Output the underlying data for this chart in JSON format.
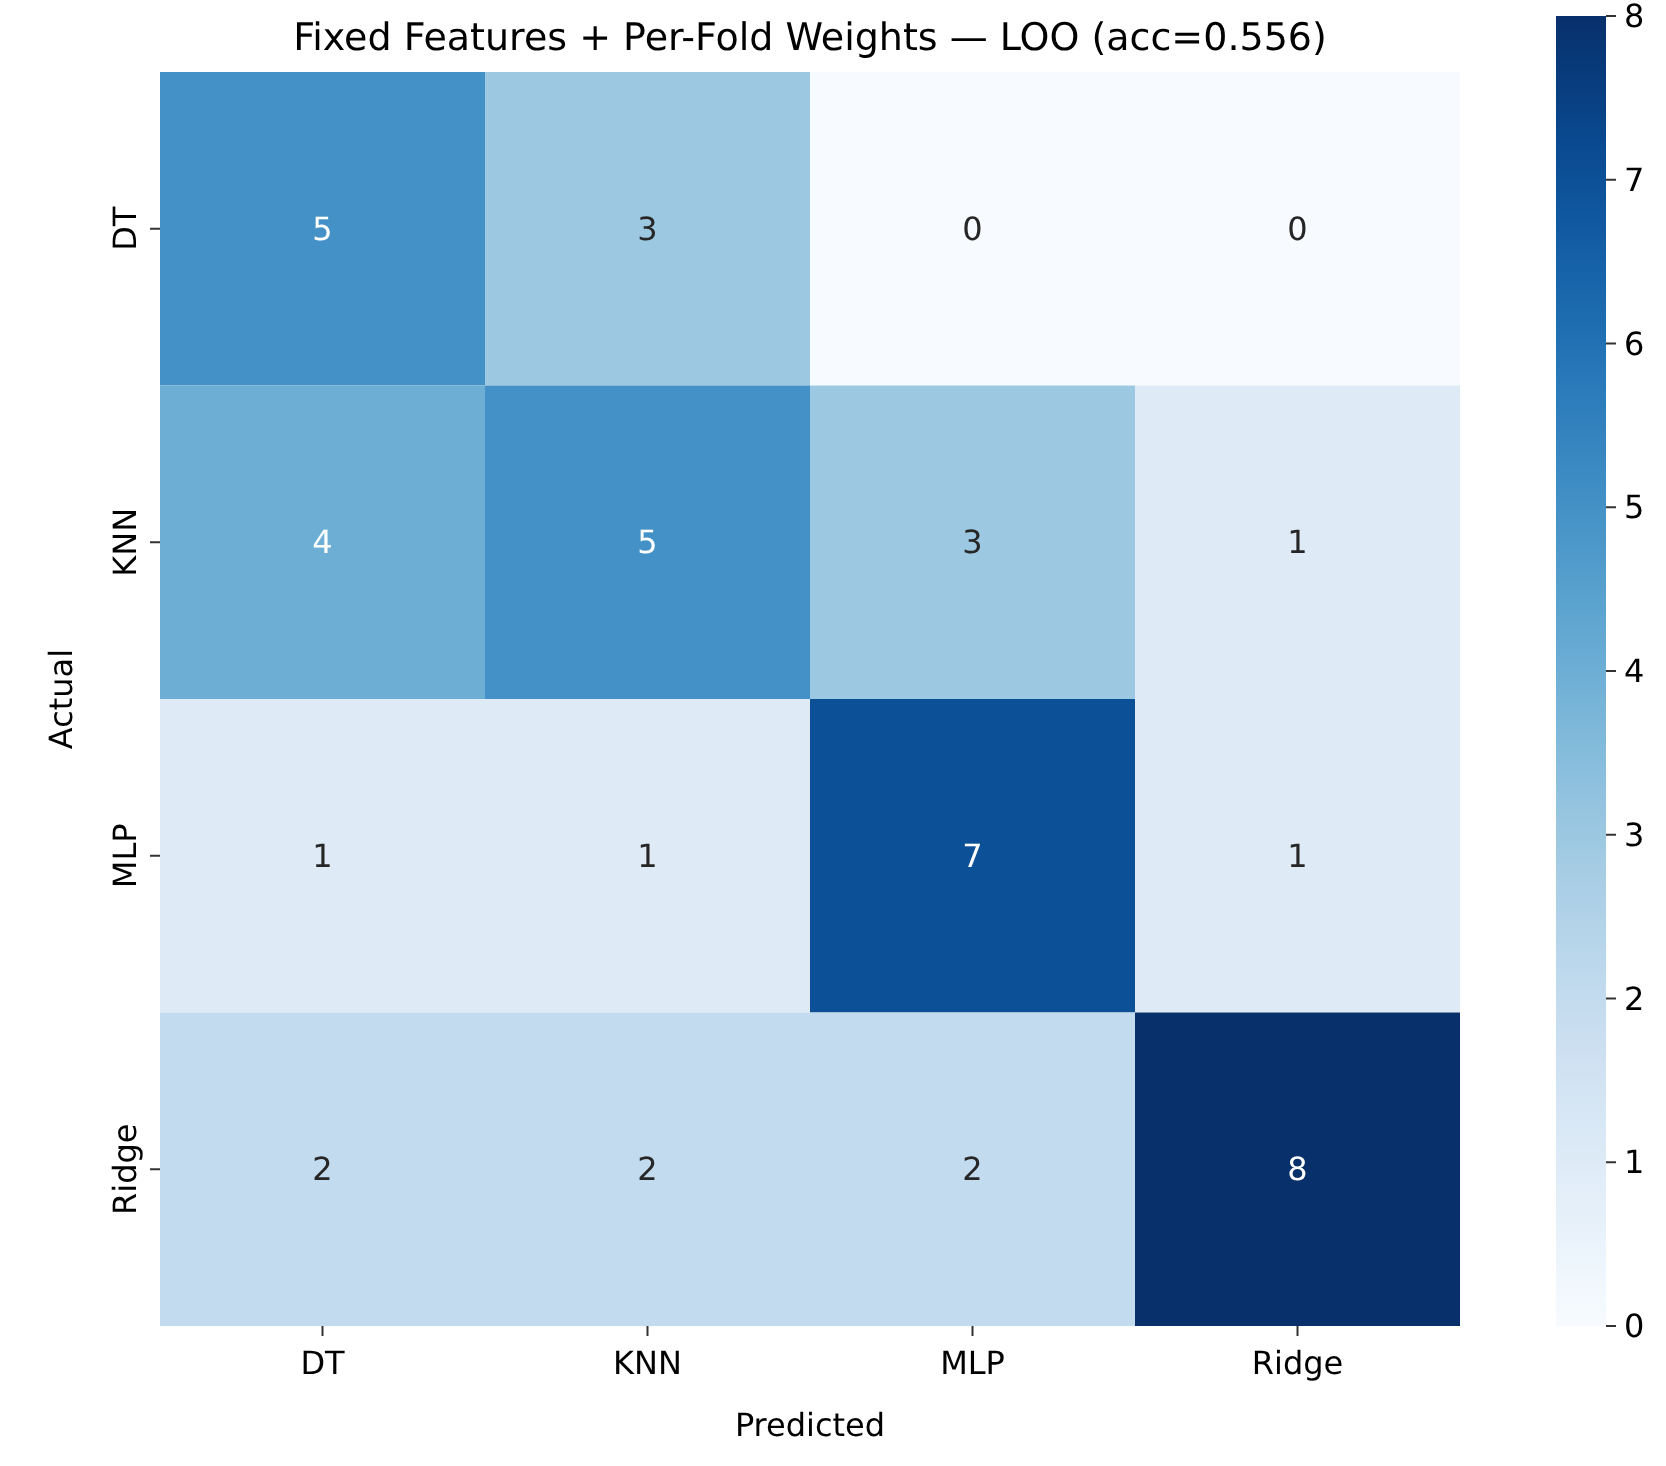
{
  "chart_data": {
    "type": "heatmap",
    "title": "Fixed Features + Per-Fold Weights — LOO (acc=0.556)",
    "xlabel": "Predicted",
    "ylabel": "Actual",
    "categories": [
      "DT",
      "KNN",
      "MLP",
      "Ridge"
    ],
    "y_categories": [
      "DT",
      "KNN",
      "MLP",
      "Ridge"
    ],
    "cells": [
      [
        5,
        3,
        0,
        0
      ],
      [
        4,
        5,
        3,
        1
      ],
      [
        1,
        1,
        7,
        1
      ],
      [
        2,
        2,
        2,
        8
      ]
    ],
    "data_labels": true,
    "clim": [
      0,
      8
    ],
    "cticks": [
      0,
      1,
      2,
      3,
      4,
      5,
      6,
      7,
      8
    ]
  }
}
